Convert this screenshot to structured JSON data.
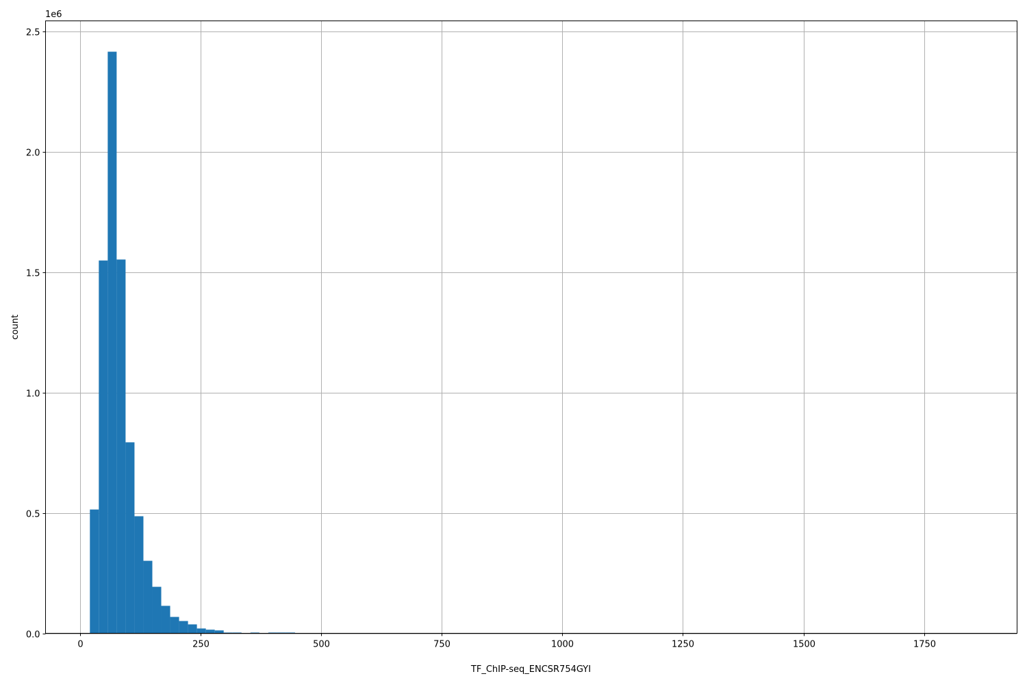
{
  "chart_data": {
    "type": "bar",
    "subtype": "histogram",
    "title": "",
    "xlabel": "TF_ChIP-seq_ENCSR754GYI",
    "ylabel": "count",
    "y_offset_label": "1e6",
    "xlim": [
      -72,
      1943
    ],
    "ylim": [
      0,
      2.543
    ],
    "y_unit_scale": 1000000,
    "xticks": [
      0,
      250,
      500,
      750,
      1000,
      1250,
      1500,
      1750
    ],
    "xtick_labels": [
      "0",
      "250",
      "500",
      "750",
      "1000",
      "1250",
      "1500",
      "1750"
    ],
    "yticks": [
      0,
      0.5,
      1.0,
      1.5,
      2.0,
      2.5
    ],
    "ytick_labels": [
      "0.0",
      "0.5",
      "1.0",
      "1.5",
      "2.0",
      "2.5"
    ],
    "grid": true,
    "bar_color": "#1f77b4",
    "bin_start": 20,
    "bin_width": 18.5,
    "values": [
      0.514,
      1.548,
      2.415,
      1.552,
      0.793,
      0.486,
      0.301,
      0.193,
      0.114,
      0.068,
      0.051,
      0.037,
      0.02,
      0.015,
      0.012,
      0.003,
      0.003,
      0.0,
      0.003,
      0.0,
      0.003,
      0.003,
      0.003
    ]
  }
}
